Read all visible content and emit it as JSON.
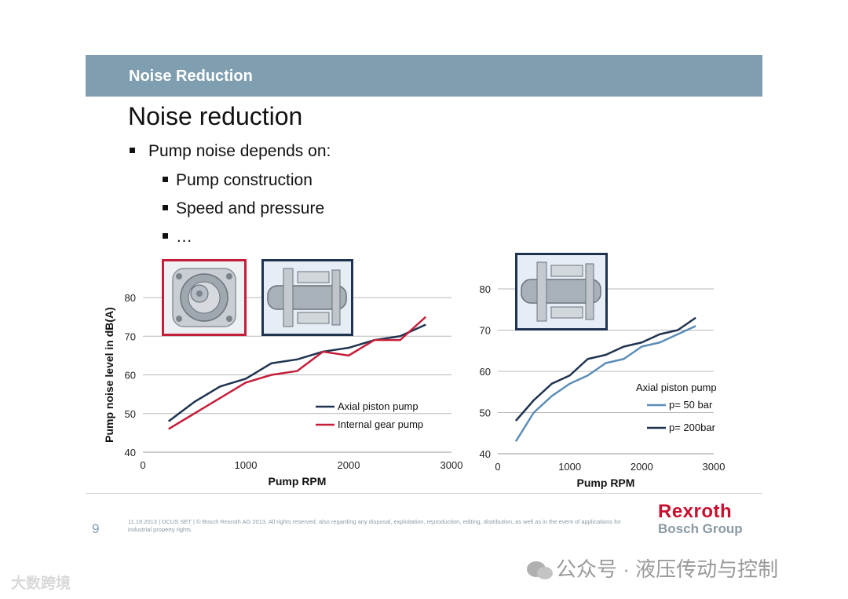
{
  "header": {
    "title": "Noise Reduction"
  },
  "slide": {
    "title": "Noise reduction",
    "bullets": {
      "main": "Pump noise depends on:",
      "sub1": "Pump construction",
      "sub2": "Speed and pressure",
      "sub3": "…"
    }
  },
  "chart_data": [
    {
      "type": "line",
      "title": "",
      "xlabel": "Pump RPM",
      "ylabel": "Pump noise level in dB(A)",
      "xlim": [
        0,
        3000
      ],
      "ylim": [
        40,
        80
      ],
      "xticks": [
        0,
        1000,
        2000,
        3000
      ],
      "yticks": [
        40,
        50,
        60,
        70,
        80
      ],
      "legend_title": "",
      "series": [
        {
          "name": "Axial piston pump",
          "color": "#1f3350",
          "x": [
            250,
            500,
            750,
            1000,
            1250,
            1500,
            1750,
            2000,
            2250,
            2500,
            2750
          ],
          "y": [
            48,
            53,
            57,
            59,
            63,
            64,
            66,
            67,
            69,
            70,
            73
          ]
        },
        {
          "name": "Internal gear pump",
          "color": "#c41e3a",
          "x": [
            250,
            500,
            750,
            1000,
            1250,
            1500,
            1750,
            2000,
            2250,
            2500,
            2750
          ],
          "y": [
            46,
            50,
            54,
            58,
            60,
            61,
            66,
            65,
            69,
            69,
            75
          ]
        }
      ]
    },
    {
      "type": "line",
      "title": "",
      "xlabel": "Pump RPM",
      "ylabel": "",
      "xlim": [
        0,
        3000
      ],
      "ylim": [
        40,
        80
      ],
      "xticks": [
        0,
        1000,
        2000,
        3000
      ],
      "yticks": [
        40,
        50,
        60,
        70,
        80
      ],
      "legend_title": "Axial piston pump",
      "series": [
        {
          "name": "p= 50 bar",
          "color": "#5b8db8",
          "x": [
            250,
            500,
            750,
            1000,
            1250,
            1500,
            1750,
            2000,
            2250,
            2500,
            2750
          ],
          "y": [
            43,
            50,
            54,
            57,
            59,
            62,
            63,
            66,
            67,
            69,
            71
          ]
        },
        {
          "name": "p= 200bar",
          "color": "#1f3350",
          "x": [
            250,
            500,
            750,
            1000,
            1250,
            1500,
            1750,
            2000,
            2250,
            2500,
            2750
          ],
          "y": [
            48,
            53,
            57,
            59,
            63,
            64,
            66,
            67,
            69,
            70,
            73
          ]
        }
      ]
    }
  ],
  "footer": {
    "page_number": "9",
    "legal": "11.19.2013 | DCUS SET | © Bosch Rexroth AG 2013. All rights reserved, also regarding any disposal, exploitation, reproduction, editing, distribution, as well as in the event of applications for industrial property rights.",
    "brand_main": "Rexroth",
    "brand_sub": "Bosch Group"
  },
  "watermarks": {
    "right": "公众号 · 液压传动与控制",
    "left": "大数跨境"
  },
  "colors": {
    "header_bg": "#7f9eb0",
    "gear_frame": "#c41e3a",
    "axial_frame": "#1f3350"
  }
}
